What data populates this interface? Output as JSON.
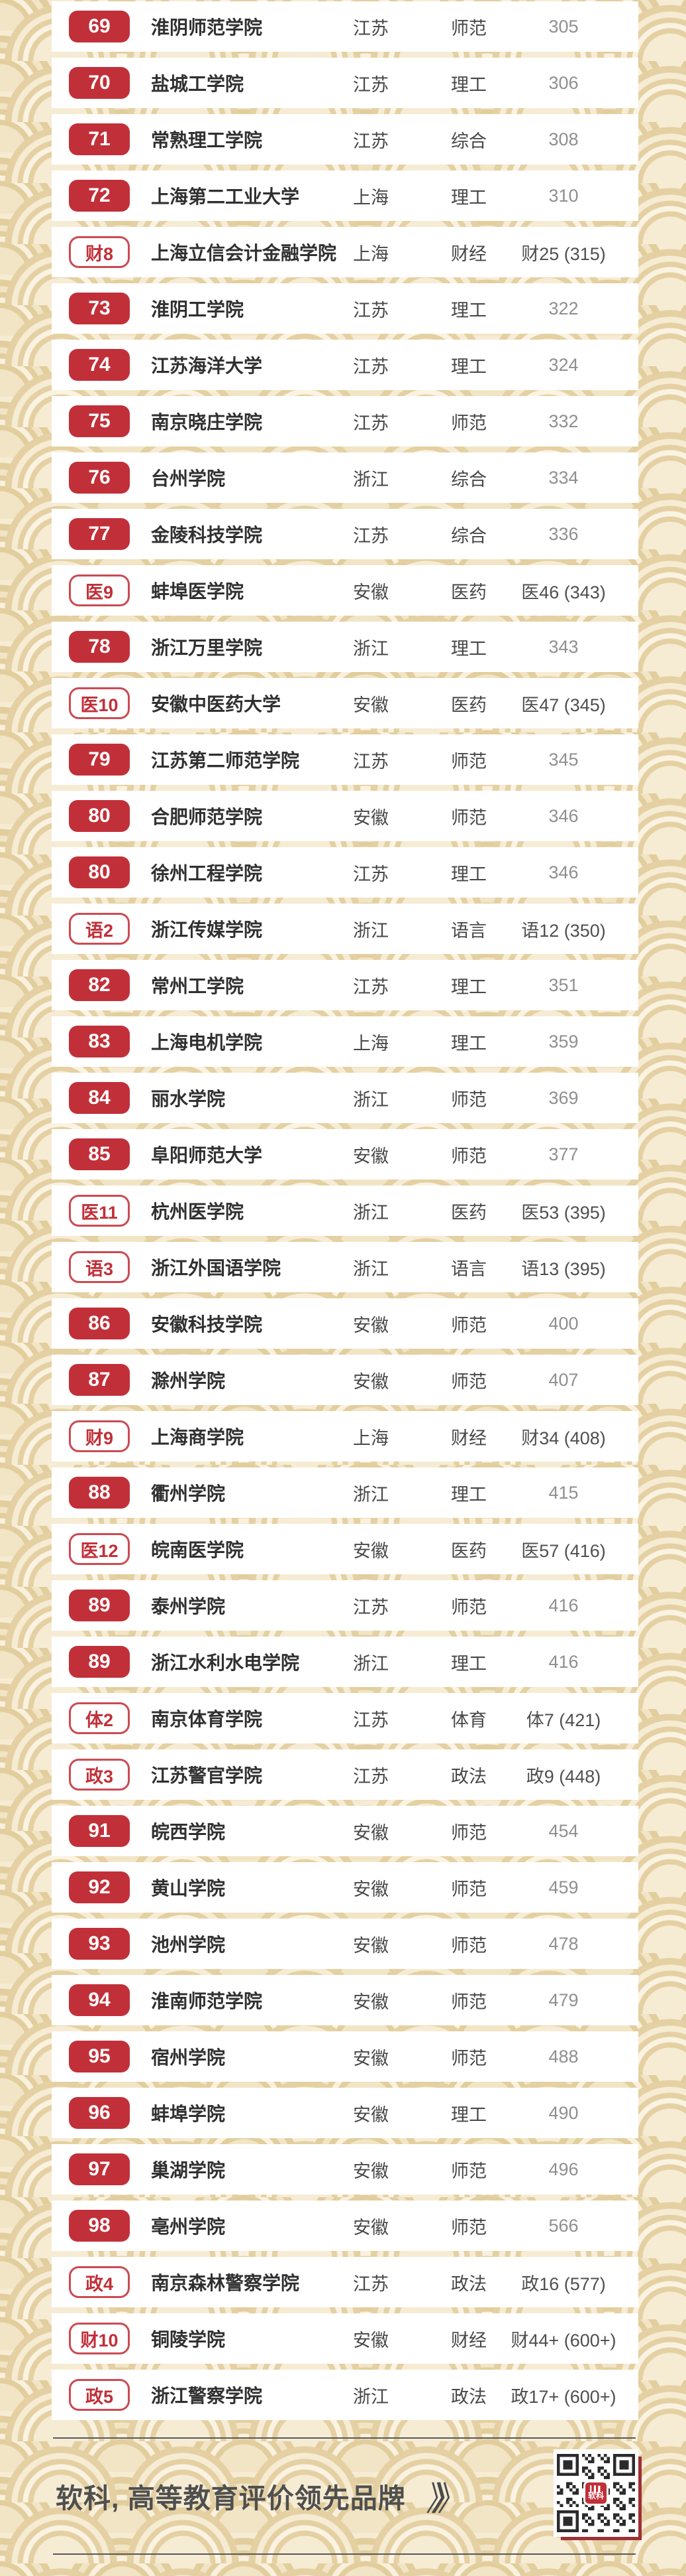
{
  "page": {
    "background_color": "#f6ecd4",
    "accent_red": "#c13039",
    "shadow_maroon": "#9c2f37"
  },
  "ranking": {
    "rows": [
      {
        "rank": "69",
        "style": "solid",
        "university": "淮阴师范学院",
        "province": "江苏",
        "category": "师范",
        "score": "305",
        "score_style": "normal"
      },
      {
        "rank": "70",
        "style": "solid",
        "university": "盐城工学院",
        "province": "江苏",
        "category": "理工",
        "score": "306",
        "score_style": "normal"
      },
      {
        "rank": "71",
        "style": "solid",
        "university": "常熟理工学院",
        "province": "江苏",
        "category": "综合",
        "score": "308",
        "score_style": "normal"
      },
      {
        "rank": "72",
        "style": "solid",
        "university": "上海第二工业大学",
        "province": "上海",
        "category": "理工",
        "score": "310",
        "score_style": "normal"
      },
      {
        "rank": "财8",
        "style": "outline",
        "university": "上海立信会计金融学院",
        "province": "上海",
        "category": "财经",
        "score": "财25 (315)",
        "score_style": "special"
      },
      {
        "rank": "73",
        "style": "solid",
        "university": "淮阴工学院",
        "province": "江苏",
        "category": "理工",
        "score": "322",
        "score_style": "normal"
      },
      {
        "rank": "74",
        "style": "solid",
        "university": "江苏海洋大学",
        "province": "江苏",
        "category": "理工",
        "score": "324",
        "score_style": "normal"
      },
      {
        "rank": "75",
        "style": "solid",
        "university": "南京晓庄学院",
        "province": "江苏",
        "category": "师范",
        "score": "332",
        "score_style": "normal"
      },
      {
        "rank": "76",
        "style": "solid",
        "university": "台州学院",
        "province": "浙江",
        "category": "综合",
        "score": "334",
        "score_style": "normal"
      },
      {
        "rank": "77",
        "style": "solid",
        "university": "金陵科技学院",
        "province": "江苏",
        "category": "综合",
        "score": "336",
        "score_style": "normal"
      },
      {
        "rank": "医9",
        "style": "outline",
        "university": "蚌埠医学院",
        "province": "安徽",
        "category": "医药",
        "score": "医46 (343)",
        "score_style": "special"
      },
      {
        "rank": "78",
        "style": "solid",
        "university": "浙江万里学院",
        "province": "浙江",
        "category": "理工",
        "score": "343",
        "score_style": "normal"
      },
      {
        "rank": "医10",
        "style": "outline",
        "university": "安徽中医药大学",
        "province": "安徽",
        "category": "医药",
        "score": "医47 (345)",
        "score_style": "special"
      },
      {
        "rank": "79",
        "style": "solid",
        "university": "江苏第二师范学院",
        "province": "江苏",
        "category": "师范",
        "score": "345",
        "score_style": "normal"
      },
      {
        "rank": "80",
        "style": "solid",
        "university": "合肥师范学院",
        "province": "安徽",
        "category": "师范",
        "score": "346",
        "score_style": "normal"
      },
      {
        "rank": "80",
        "style": "solid",
        "university": "徐州工程学院",
        "province": "江苏",
        "category": "理工",
        "score": "346",
        "score_style": "normal"
      },
      {
        "rank": "语2",
        "style": "outline",
        "university": "浙江传媒学院",
        "province": "浙江",
        "category": "语言",
        "score": "语12 (350)",
        "score_style": "special"
      },
      {
        "rank": "82",
        "style": "solid",
        "university": "常州工学院",
        "province": "江苏",
        "category": "理工",
        "score": "351",
        "score_style": "normal"
      },
      {
        "rank": "83",
        "style": "solid",
        "university": "上海电机学院",
        "province": "上海",
        "category": "理工",
        "score": "359",
        "score_style": "normal"
      },
      {
        "rank": "84",
        "style": "solid",
        "university": "丽水学院",
        "province": "浙江",
        "category": "师范",
        "score": "369",
        "score_style": "normal"
      },
      {
        "rank": "85",
        "style": "solid",
        "university": "阜阳师范大学",
        "province": "安徽",
        "category": "师范",
        "score": "377",
        "score_style": "normal"
      },
      {
        "rank": "医11",
        "style": "outline",
        "university": "杭州医学院",
        "province": "浙江",
        "category": "医药",
        "score": "医53 (395)",
        "score_style": "special"
      },
      {
        "rank": "语3",
        "style": "outline",
        "university": "浙江外国语学院",
        "province": "浙江",
        "category": "语言",
        "score": "语13 (395)",
        "score_style": "special"
      },
      {
        "rank": "86",
        "style": "solid",
        "university": "安徽科技学院",
        "province": "安徽",
        "category": "师范",
        "score": "400",
        "score_style": "normal"
      },
      {
        "rank": "87",
        "style": "solid",
        "university": "滁州学院",
        "province": "安徽",
        "category": "师范",
        "score": "407",
        "score_style": "normal"
      },
      {
        "rank": "财9",
        "style": "outline",
        "university": "上海商学院",
        "province": "上海",
        "category": "财经",
        "score": "财34 (408)",
        "score_style": "special"
      },
      {
        "rank": "88",
        "style": "solid",
        "university": "衢州学院",
        "province": "浙江",
        "category": "理工",
        "score": "415",
        "score_style": "normal"
      },
      {
        "rank": "医12",
        "style": "outline",
        "university": "皖南医学院",
        "province": "安徽",
        "category": "医药",
        "score": "医57 (416)",
        "score_style": "special"
      },
      {
        "rank": "89",
        "style": "solid",
        "university": "泰州学院",
        "province": "江苏",
        "category": "师范",
        "score": "416",
        "score_style": "normal"
      },
      {
        "rank": "89",
        "style": "solid",
        "university": "浙江水利水电学院",
        "province": "浙江",
        "category": "理工",
        "score": "416",
        "score_style": "normal"
      },
      {
        "rank": "体2",
        "style": "outline",
        "university": "南京体育学院",
        "province": "江苏",
        "category": "体育",
        "score": "体7 (421)",
        "score_style": "special"
      },
      {
        "rank": "政3",
        "style": "outline",
        "university": "江苏警官学院",
        "province": "江苏",
        "category": "政法",
        "score": "政9 (448)",
        "score_style": "special"
      },
      {
        "rank": "91",
        "style": "solid",
        "university": "皖西学院",
        "province": "安徽",
        "category": "师范",
        "score": "454",
        "score_style": "normal"
      },
      {
        "rank": "92",
        "style": "solid",
        "university": "黄山学院",
        "province": "安徽",
        "category": "师范",
        "score": "459",
        "score_style": "normal"
      },
      {
        "rank": "93",
        "style": "solid",
        "university": "池州学院",
        "province": "安徽",
        "category": "师范",
        "score": "478",
        "score_style": "normal"
      },
      {
        "rank": "94",
        "style": "solid",
        "university": "淮南师范学院",
        "province": "安徽",
        "category": "师范",
        "score": "479",
        "score_style": "normal"
      },
      {
        "rank": "95",
        "style": "solid",
        "university": "宿州学院",
        "province": "安徽",
        "category": "师范",
        "score": "488",
        "score_style": "normal"
      },
      {
        "rank": "96",
        "style": "solid",
        "university": "蚌埠学院",
        "province": "安徽",
        "category": "理工",
        "score": "490",
        "score_style": "normal"
      },
      {
        "rank": "97",
        "style": "solid",
        "university": "巢湖学院",
        "province": "安徽",
        "category": "师范",
        "score": "496",
        "score_style": "normal"
      },
      {
        "rank": "98",
        "style": "solid",
        "university": "亳州学院",
        "province": "安徽",
        "category": "师范",
        "score": "566",
        "score_style": "normal"
      },
      {
        "rank": "政4",
        "style": "outline",
        "university": "南京森林警察学院",
        "province": "江苏",
        "category": "政法",
        "score": "政16 (577)",
        "score_style": "special"
      },
      {
        "rank": "财10",
        "style": "outline",
        "university": "铜陵学院",
        "province": "安徽",
        "category": "财经",
        "score": "财44+ (600+)",
        "score_style": "special"
      },
      {
        "rank": "政5",
        "style": "outline",
        "university": "浙江警察学院",
        "province": "浙江",
        "category": "政法",
        "score": "政17+ (600+)",
        "score_style": "special"
      }
    ]
  },
  "footer": {
    "brand": "软科, 高等教育评价领先品牌",
    "arrows": "》》",
    "qr_logo_bars": "▎▍▌",
    "qr_logo_text": "软科"
  }
}
